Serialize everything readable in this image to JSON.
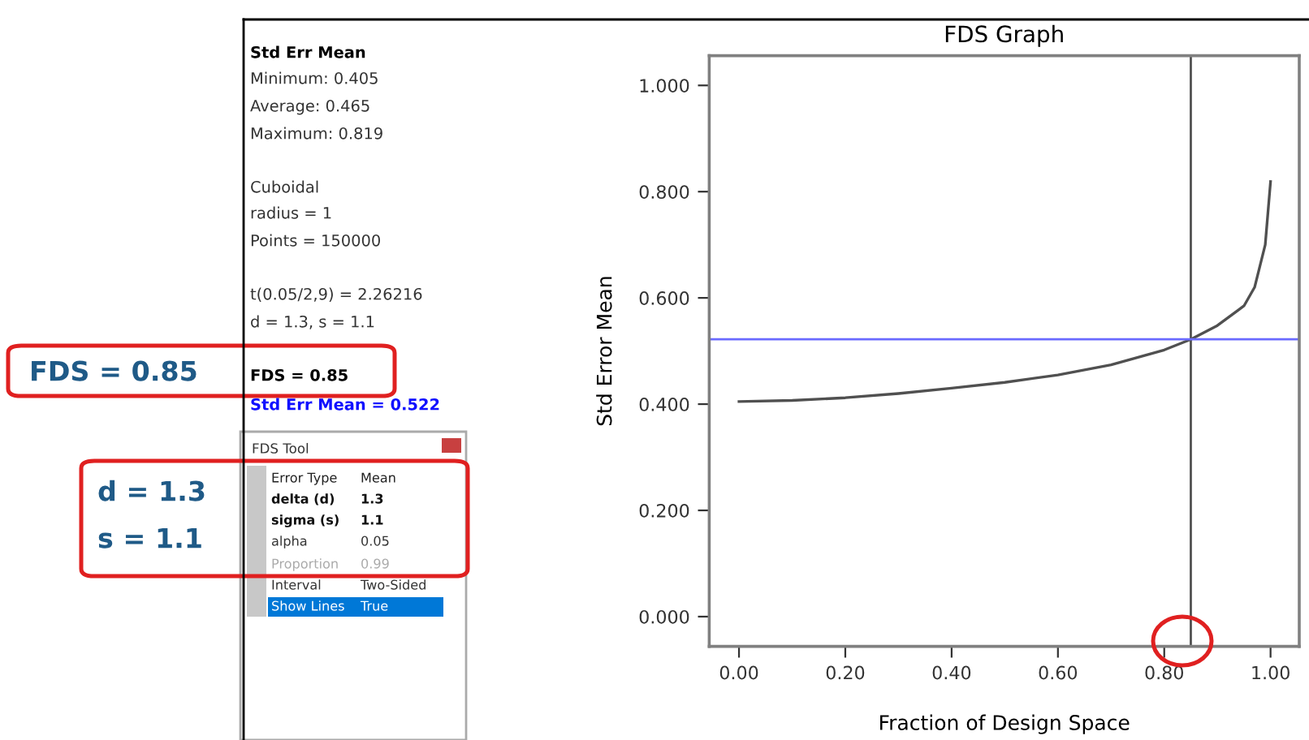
{
  "chart_data": {
    "type": "line",
    "title": "FDS Graph",
    "xlabel": "Fraction of Design Space",
    "ylabel": "Std Error Mean",
    "x": [
      0,
      0.1,
      0.2,
      0.3,
      0.4,
      0.5,
      0.6,
      0.7,
      0.8,
      0.85,
      0.9,
      0.95,
      0.97,
      0.99,
      1.0
    ],
    "series": [
      {
        "color": "#505050",
        "values": [
          0.405,
          0.407,
          0.412,
          0.42,
          0.43,
          0.441,
          0.455,
          0.474,
          0.502,
          0.522,
          0.548,
          0.585,
          0.62,
          0.7,
          0.819
        ]
      }
    ],
    "xlim": [
      -0.056,
      1.054
    ],
    "ylim": [
      -0.056,
      1.056
    ],
    "xticks": [
      {
        "value": 0,
        "label": "0.00"
      },
      {
        "value": 0.2,
        "label": "0.20"
      },
      {
        "value": 0.4,
        "label": "0.40"
      },
      {
        "value": 0.6,
        "label": "0.60"
      },
      {
        "value": 0.8,
        "label": "0.80"
      },
      {
        "value": 1,
        "label": "1.00"
      }
    ],
    "yticks": [
      {
        "value": 0,
        "label": "0.000"
      },
      {
        "value": 0.2,
        "label": "0.200"
      },
      {
        "value": 0.4,
        "label": "0.400"
      },
      {
        "value": 0.6,
        "label": "0.600"
      },
      {
        "value": 0.8,
        "label": "0.800"
      },
      {
        "value": 1,
        "label": "1.000"
      }
    ],
    "ref_lines": [
      {
        "axis": "x",
        "value": 0.85,
        "color": "#505050"
      },
      {
        "axis": "y",
        "value": 0.522,
        "color": "#6a6aff"
      }
    ],
    "grid": false,
    "legend": false,
    "marker": "none",
    "line_style": "solid",
    "annotations": [
      "Std Err Mean",
      "Minimum: 0.405",
      "Average: 0.465",
      "Maximum: 0.819",
      "Cuboidal",
      "radius = 1",
      "Points = 150000",
      "t(0.05/2,9) = 2.26216",
      "d = 1.3, s = 1.1",
      "FDS = 0.85",
      "Std Err Mean = 0.522",
      "FDS Tool",
      "Error Type",
      "Mean",
      "delta (d)",
      "1.3",
      "sigma (s)",
      "1.1",
      "alpha",
      "0.05",
      "Proportion",
      "0.99",
      "Interval",
      "Two-Sided",
      "Show Lines",
      "True",
      "FDS = 0.85",
      "d = 1.3",
      "s = 1.1"
    ]
  }
}
